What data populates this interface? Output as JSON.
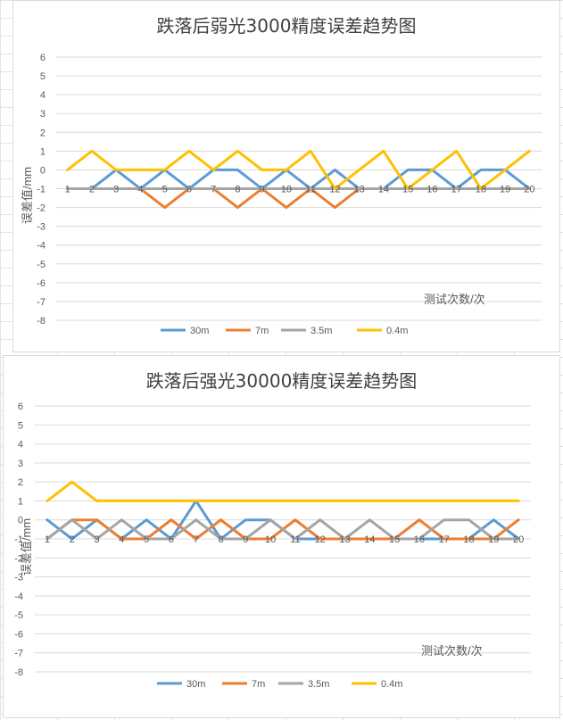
{
  "chart_data": [
    {
      "type": "line",
      "title": "跌落后弱光3000精度误差趋势图",
      "ylabel": "误差值/mm",
      "xlabel": "测试次数/次",
      "ylim": [
        -8,
        6
      ],
      "y_ticks": [
        "6",
        "5",
        "4",
        "3",
        "2",
        "1",
        "0",
        "-1",
        "-2",
        "-3",
        "-4",
        "-5",
        "-6",
        "-7",
        "-8"
      ],
      "categories": [
        "1",
        "2",
        "3",
        "4",
        "5",
        "6",
        "7",
        "8",
        "9",
        "10",
        "11",
        "12",
        "13",
        "14",
        "15",
        "16",
        "17",
        "18",
        "19",
        "20"
      ],
      "grid": true,
      "legend_position": "bottom",
      "series": [
        {
          "name": "30m",
          "color": "#5b9bd5",
          "values": [
            -1,
            -1,
            0,
            -1,
            0,
            -1,
            0,
            0,
            -1,
            0,
            -1,
            0,
            -1,
            -1,
            0,
            0,
            -1,
            0,
            0,
            -1
          ]
        },
        {
          "name": "7m",
          "color": "#ed7d31",
          "values": [
            -1,
            -1,
            -1,
            -1,
            -2,
            -1,
            -1,
            -2,
            -1,
            -2,
            -1,
            -2,
            -1,
            -1,
            -1,
            -1,
            -1,
            -1,
            -1,
            -1
          ]
        },
        {
          "name": "3.5m",
          "color": "#a5a5a5",
          "values": [
            -1,
            -1,
            -1,
            -1,
            -1,
            -1,
            -1,
            -1,
            -1,
            -1,
            -1,
            -1,
            -1,
            -1,
            -1,
            -1,
            -1,
            -1,
            -1,
            -1
          ]
        },
        {
          "name": "0.4m",
          "color": "#ffc000",
          "values": [
            0,
            1,
            0,
            0,
            0,
            1,
            0,
            1,
            0,
            0,
            1,
            -1,
            0,
            1,
            -1,
            0,
            1,
            -1,
            0,
            1
          ]
        }
      ]
    },
    {
      "type": "line",
      "title": "跌落后强光30000精度误差趋势图",
      "ylabel": "误差值/mm",
      "xlabel": "测试次数/次",
      "ylim": [
        -8,
        6
      ],
      "y_ticks": [
        "6",
        "5",
        "4",
        "3",
        "2",
        "1",
        "0",
        "-1",
        "-2",
        "-3",
        "-4",
        "-5",
        "-6",
        "-7",
        "-8"
      ],
      "categories": [
        "1",
        "2",
        "3",
        "4",
        "5",
        "6",
        "7",
        "8",
        "9",
        "10",
        "11",
        "12",
        "13",
        "14",
        "15",
        "16",
        "17",
        "18",
        "19",
        "20"
      ],
      "grid": true,
      "legend_position": "bottom",
      "series": [
        {
          "name": "30m",
          "color": "#5b9bd5",
          "values": [
            0,
            -1,
            0,
            -1,
            0,
            -1,
            1,
            -1,
            0,
            0,
            -1,
            -1,
            -1,
            -1,
            -1,
            -1,
            -1,
            -1,
            0,
            -1
          ]
        },
        {
          "name": "7m",
          "color": "#ed7d31",
          "values": [
            -1,
            0,
            0,
            -1,
            -1,
            0,
            -1,
            0,
            -1,
            -1,
            0,
            -1,
            -1,
            -1,
            -1,
            0,
            -1,
            -1,
            -1,
            0
          ]
        },
        {
          "name": "3.5m",
          "color": "#a5a5a5",
          "values": [
            -1,
            0,
            -1,
            0,
            -1,
            -1,
            0,
            -1,
            -1,
            0,
            -1,
            0,
            -1,
            0,
            -1,
            -1,
            0,
            0,
            -1,
            -1
          ]
        },
        {
          "name": "0.4m",
          "color": "#ffc000",
          "values": [
            1,
            2,
            1,
            1,
            1,
            1,
            1,
            1,
            1,
            1,
            1,
            1,
            1,
            1,
            1,
            1,
            1,
            1,
            1,
            1
          ]
        }
      ]
    }
  ]
}
